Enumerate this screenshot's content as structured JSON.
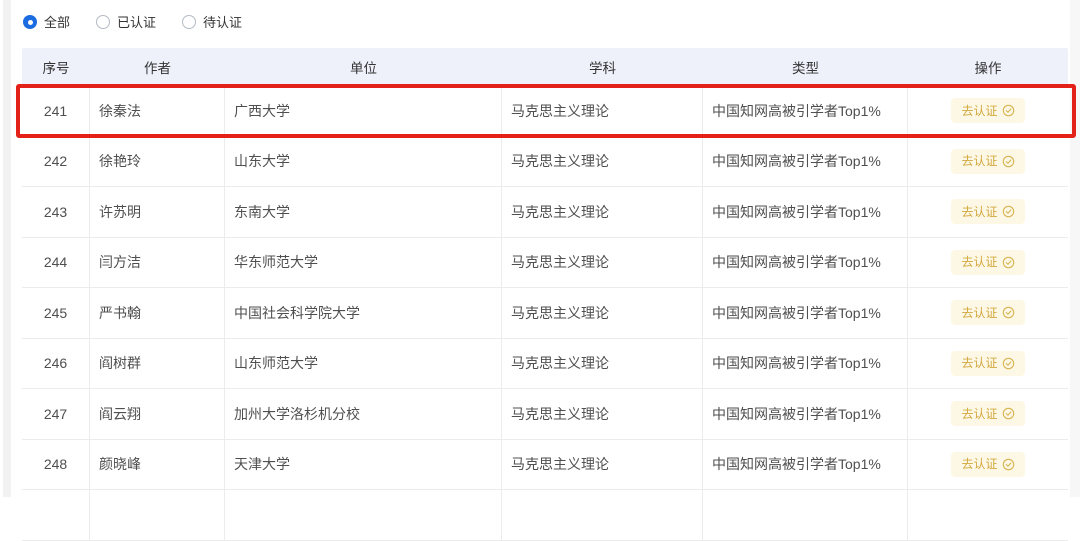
{
  "filters": {
    "options": [
      {
        "label": "全部",
        "selected": true
      },
      {
        "label": "已认证",
        "selected": false
      },
      {
        "label": "待认证",
        "selected": false
      }
    ]
  },
  "table": {
    "columns": [
      "序号",
      "作者",
      "单位",
      "学科",
      "类型",
      "操作"
    ],
    "action_label": "去认证",
    "action_icon": "badge-check-icon",
    "rows": [
      {
        "no": "241",
        "author": "徐秦法",
        "org": "广西大学",
        "subject": "马克思主义理论",
        "type": "中国知网高被引学者Top1%"
      },
      {
        "no": "242",
        "author": "徐艳玲",
        "org": "山东大学",
        "subject": "马克思主义理论",
        "type": "中国知网高被引学者Top1%"
      },
      {
        "no": "243",
        "author": "许苏明",
        "org": "东南大学",
        "subject": "马克思主义理论",
        "type": "中国知网高被引学者Top1%"
      },
      {
        "no": "244",
        "author": "闫方洁",
        "org": "华东师范大学",
        "subject": "马克思主义理论",
        "type": "中国知网高被引学者Top1%"
      },
      {
        "no": "245",
        "author": "严书翰",
        "org": "中国社会科学院大学",
        "subject": "马克思主义理论",
        "type": "中国知网高被引学者Top1%"
      },
      {
        "no": "246",
        "author": "阎树群",
        "org": "山东师范大学",
        "subject": "马克思主义理论",
        "type": "中国知网高被引学者Top1%"
      },
      {
        "no": "247",
        "author": "阎云翔",
        "org": "加州大学洛杉机分校",
        "subject": "马克思主义理论",
        "type": "中国知网高被引学者Top1%"
      },
      {
        "no": "248",
        "author": "颜晓峰",
        "org": "天津大学",
        "subject": "马克思主义理论",
        "type": "中国知网高被引学者Top1%"
      }
    ],
    "highlight": {
      "row_no": "241",
      "color": "#e32119"
    }
  },
  "colors": {
    "header_bg": "#eef1fa",
    "accent_blue": "#1b6ce0",
    "button_text": "#d3a93f",
    "button_bg": "#fdf8e6",
    "highlight_red": "#e32119"
  }
}
